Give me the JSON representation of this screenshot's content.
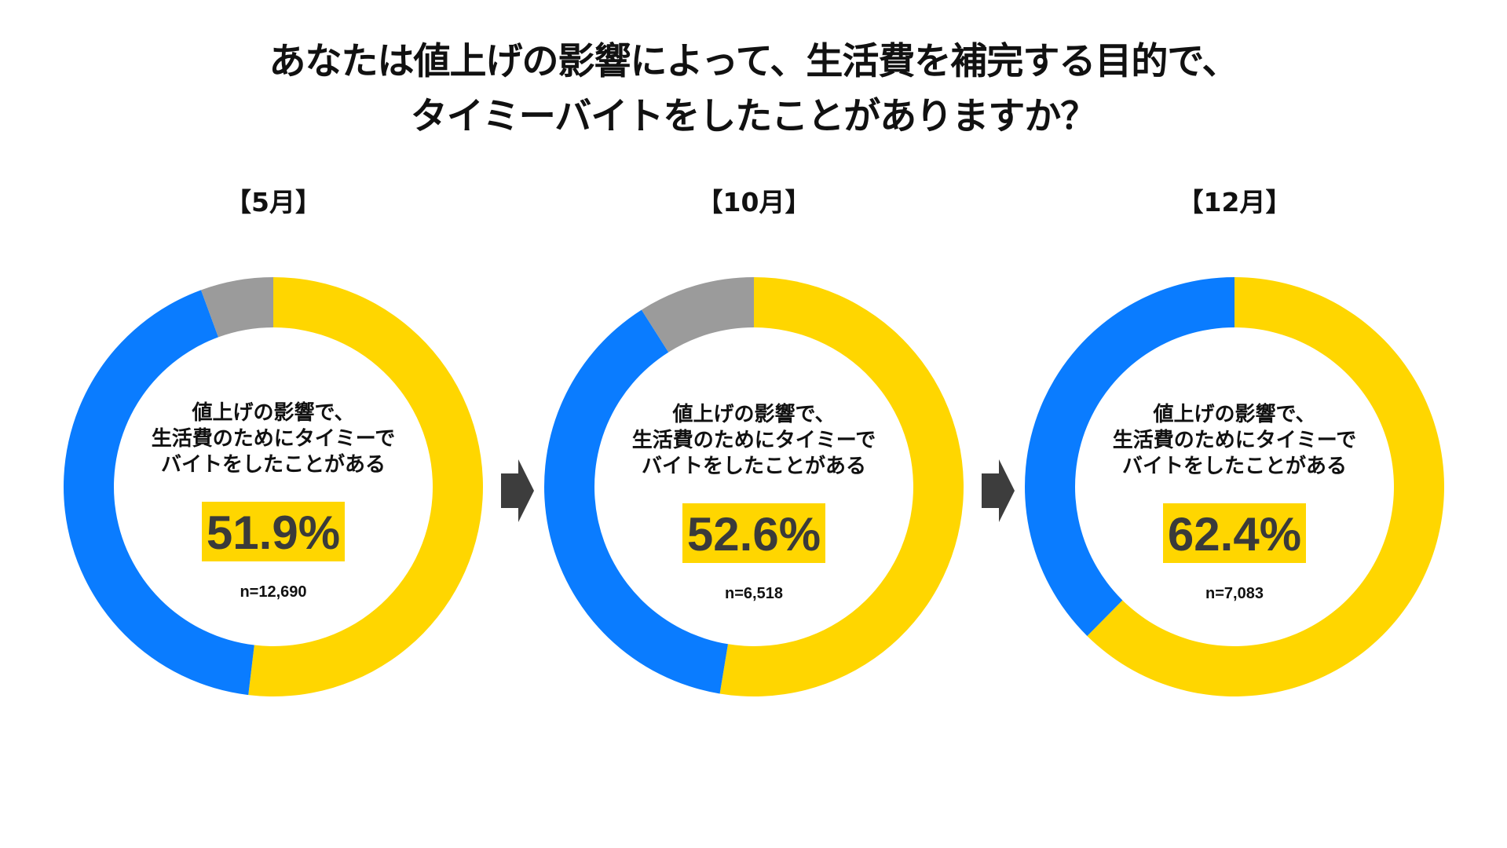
{
  "title": {
    "line1": "あなたは値上げの影響によって、生活費を補完する目的で、",
    "line2": "タイミーバイトをしたことがありますか？"
  },
  "colors": {
    "yes": "#ffd600",
    "no": "#0a7cff",
    "other": "#9b9b9b",
    "arrow": "#3d3d3d"
  },
  "chart_data": [
    {
      "type": "pie",
      "label": "【5月】",
      "center_text": [
        "値上げの影響で、",
        "生活費のためにタイミーで",
        "バイトをしたことがある"
      ],
      "highlight": "51.9%",
      "n": "n=12,690",
      "slices": [
        {
          "category": "yes",
          "value": 51.9,
          "color": "#ffd600"
        },
        {
          "category": "no",
          "value": 42.5,
          "color": "#0a7cff"
        },
        {
          "category": "other",
          "value": 5.6,
          "color": "#9b9b9b"
        }
      ]
    },
    {
      "type": "pie",
      "label": "【10月】",
      "center_text": [
        "値上げの影響で、",
        "生活費のためにタイミーで",
        "バイトをしたことがある"
      ],
      "highlight": "52.6%",
      "n": "n=6,518",
      "slices": [
        {
          "category": "yes",
          "value": 52.6,
          "color": "#ffd600"
        },
        {
          "category": "no",
          "value": 38.4,
          "color": "#0a7cff"
        },
        {
          "category": "other",
          "value": 9.0,
          "color": "#9b9b9b"
        }
      ]
    },
    {
      "type": "pie",
      "label": "【12月】",
      "center_text": [
        "値上げの影響で、",
        "生活費のためにタイミーで",
        "バイトをしたことがある"
      ],
      "highlight": "62.4%",
      "n": "n=7,083",
      "slices": [
        {
          "category": "yes",
          "value": 62.4,
          "color": "#ffd600"
        },
        {
          "category": "no",
          "value": 37.6,
          "color": "#0a7cff"
        }
      ]
    }
  ]
}
